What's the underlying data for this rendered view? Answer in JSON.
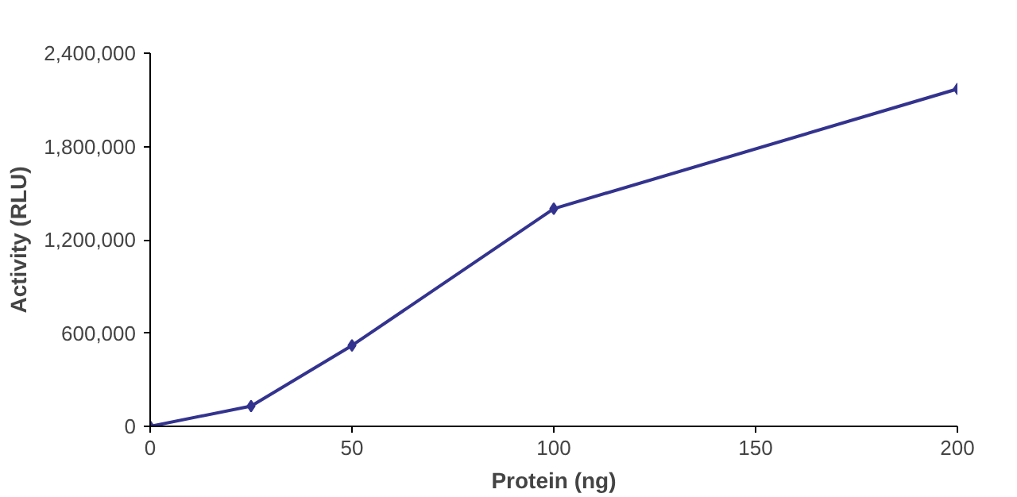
{
  "chart_data": {
    "type": "line",
    "xlabel": "Protein (ng)",
    "ylabel": "Activity (RLU)",
    "x": [
      0,
      25,
      50,
      100,
      200
    ],
    "series": [
      {
        "color": "#33338f",
        "values": [
          0,
          130000,
          520000,
          1400000,
          2170000
        ]
      }
    ],
    "xlim": [
      0,
      200
    ],
    "ylim": [
      0,
      2400000
    ],
    "xticks": [
      0,
      50,
      100,
      150,
      200
    ],
    "yticks": [
      0,
      {
        "value": 600000,
        "label": "600,000"
      },
      {
        "value": 1200000,
        "label": "1,200,000"
      },
      {
        "value": 1800000,
        "label": "1,800,000"
      },
      {
        "value": 2400000,
        "label": "2,400,000"
      }
    ],
    "grid": false,
    "marker": "diamond",
    "line_style": "solid"
  }
}
